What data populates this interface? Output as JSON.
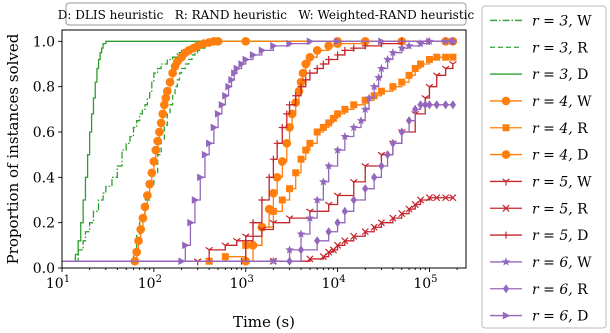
{
  "chart_data": {
    "type": "line",
    "title": "",
    "xlabel": "Time (s)",
    "ylabel": "Proportion of instances solved",
    "xscale": "log",
    "xlim": [
      10,
      250000
    ],
    "ylim": [
      0,
      1.05
    ],
    "x_ticks": [
      {
        "value": 10,
        "base": "10",
        "exp": "1"
      },
      {
        "value": 100,
        "base": "10",
        "exp": "2"
      },
      {
        "value": 1000,
        "base": "10",
        "exp": "3"
      },
      {
        "value": 10000,
        "base": "10",
        "exp": "4"
      },
      {
        "value": 100000,
        "base": "10",
        "exp": "5"
      }
    ],
    "y_ticks": [
      "0.0",
      "0.2",
      "0.4",
      "0.6",
      "0.8",
      "1.0"
    ],
    "note": "D: DLIS heuristic   R: RAND heuristic   W: Weighted-RAND heuristic",
    "legend_position": "right-outside",
    "series": [
      {
        "name": "r = 3, W",
        "color": "#2ca02c",
        "dash": "dashdot",
        "marker": "none",
        "x": [
          10,
          14,
          15,
          17,
          18,
          20,
          22,
          25,
          28,
          30,
          35,
          40,
          45,
          50,
          55,
          60,
          65,
          70,
          75,
          80,
          85,
          90,
          95,
          100,
          110,
          120,
          140,
          160,
          180,
          200,
          230,
          260,
          300,
          350,
          400,
          450,
          500,
          600,
          700,
          900,
          1200,
          2000,
          5000,
          20000,
          150000
        ],
        "y": [
          0.03,
          0.03,
          0.08,
          0.12,
          0.16,
          0.2,
          0.25,
          0.3,
          0.33,
          0.36,
          0.4,
          0.45,
          0.52,
          0.55,
          0.58,
          0.62,
          0.65,
          0.68,
          0.7,
          0.72,
          0.75,
          0.78,
          0.82,
          0.86,
          0.88,
          0.9,
          0.92,
          0.93,
          0.95,
          0.96,
          0.97,
          0.98,
          0.98,
          0.99,
          0.99,
          1.0,
          1.0,
          1.0,
          1.0,
          1.0,
          1.0,
          1.0,
          1.0,
          1.0,
          1.0
        ]
      },
      {
        "name": "r = 3, R",
        "color": "#2ca02c",
        "dash": "dashed",
        "marker": "none",
        "x": [
          10,
          58,
          60,
          65,
          70,
          80,
          90,
          100,
          110,
          120,
          130,
          140,
          150,
          160,
          170,
          180,
          190,
          200,
          220,
          240,
          260,
          280,
          300,
          330,
          360,
          400,
          450,
          500,
          700,
          1000,
          3000,
          20000,
          150000
        ],
        "y": [
          0.03,
          0.03,
          0.08,
          0.15,
          0.22,
          0.3,
          0.36,
          0.42,
          0.5,
          0.57,
          0.63,
          0.68,
          0.72,
          0.76,
          0.8,
          0.83,
          0.86,
          0.88,
          0.9,
          0.92,
          0.94,
          0.95,
          0.96,
          0.97,
          0.98,
          0.99,
          0.99,
          1.0,
          1.0,
          1.0,
          1.0,
          1.0,
          1.0
        ]
      },
      {
        "name": "r = 3, D",
        "color": "#2ca02c",
        "dash": "solid",
        "marker": "none",
        "x": [
          10,
          13,
          14,
          15,
          16,
          17,
          18,
          19,
          20,
          21,
          22,
          23,
          24,
          25,
          26,
          27,
          28,
          30,
          40,
          100,
          1000,
          150000
        ],
        "y": [
          0.03,
          0.03,
          0.06,
          0.12,
          0.2,
          0.3,
          0.4,
          0.5,
          0.6,
          0.68,
          0.75,
          0.82,
          0.88,
          0.92,
          0.95,
          0.97,
          0.99,
          1.0,
          1.0,
          1.0,
          1.0,
          1.0
        ]
      },
      {
        "name": "r = 4, W",
        "color": "#ff7f0e",
        "dash": "solid",
        "marker": "circle",
        "x": [
          10,
          62,
          65,
          68,
          72,
          76,
          80,
          85,
          90,
          95,
          100,
          105,
          110,
          115,
          120,
          125,
          130,
          135,
          140,
          150,
          160,
          170,
          180,
          200,
          220,
          240,
          270,
          300,
          350,
          400,
          450,
          500,
          1000,
          10000,
          150000
        ],
        "y": [
          0.03,
          0.03,
          0.07,
          0.12,
          0.17,
          0.22,
          0.27,
          0.32,
          0.37,
          0.42,
          0.47,
          0.52,
          0.56,
          0.6,
          0.64,
          0.68,
          0.72,
          0.75,
          0.78,
          0.82,
          0.86,
          0.89,
          0.91,
          0.93,
          0.95,
          0.96,
          0.97,
          0.98,
          0.99,
          0.995,
          1.0,
          1.0,
          1.0,
          1.0,
          1.0
        ]
      },
      {
        "name": "r = 4, R",
        "color": "#ff7f0e",
        "dash": "solid",
        "marker": "square",
        "x": [
          10,
          400,
          600,
          1000,
          1500,
          2000,
          2500,
          3000,
          3500,
          4000,
          4500,
          5000,
          6000,
          7000,
          8000,
          9000,
          10000,
          12000,
          15000,
          20000,
          25000,
          30000,
          40000,
          50000,
          60000,
          70000,
          80000,
          100000,
          120000,
          150000,
          180000
        ],
        "y": [
          0.03,
          0.03,
          0.05,
          0.1,
          0.18,
          0.25,
          0.3,
          0.35,
          0.42,
          0.48,
          0.52,
          0.55,
          0.6,
          0.62,
          0.64,
          0.66,
          0.68,
          0.7,
          0.72,
          0.74,
          0.76,
          0.78,
          0.8,
          0.82,
          0.85,
          0.88,
          0.9,
          0.92,
          0.93,
          0.93,
          0.93
        ]
      },
      {
        "name": "r = 4, D",
        "color": "#ff7f0e",
        "dash": "solid",
        "marker": "circle",
        "x": [
          10,
          1000,
          1200,
          1500,
          1800,
          2000,
          2200,
          2500,
          2800,
          3000,
          3200,
          3500,
          3800,
          4000,
          4200,
          4500,
          5000,
          6000,
          8000,
          10000,
          20000,
          50000,
          180000
        ],
        "y": [
          0.03,
          0.03,
          0.1,
          0.18,
          0.26,
          0.33,
          0.4,
          0.47,
          0.55,
          0.62,
          0.68,
          0.73,
          0.78,
          0.82,
          0.86,
          0.9,
          0.93,
          0.96,
          0.98,
          0.99,
          1.0,
          1.0,
          1.0
        ]
      },
      {
        "name": "r = 5, W",
        "color": "#c4262e",
        "dash": "solid",
        "marker": "tri_down",
        "x": [
          10,
          300,
          400,
          600,
          800,
          1000,
          1500,
          2000,
          3000,
          5000,
          8000,
          10000,
          15000,
          20000,
          30000,
          40000,
          50000,
          70000,
          90000,
          100000,
          120000,
          150000,
          180000
        ],
        "y": [
          0.03,
          0.03,
          0.08,
          0.1,
          0.12,
          0.14,
          0.17,
          0.2,
          0.22,
          0.25,
          0.28,
          0.32,
          0.38,
          0.45,
          0.5,
          0.55,
          0.6,
          0.68,
          0.75,
          0.8,
          0.85,
          0.88,
          0.9
        ]
      },
      {
        "name": "r = 5, R",
        "color": "#c4262e",
        "dash": "solid",
        "marker": "x",
        "x": [
          10,
          2000,
          5000,
          7000,
          8000,
          9000,
          10000,
          12000,
          15000,
          20000,
          25000,
          30000,
          40000,
          50000,
          60000,
          70000,
          80000,
          100000,
          120000,
          150000,
          180000
        ],
        "y": [
          0.03,
          0.03,
          0.04,
          0.05,
          0.07,
          0.08,
          0.1,
          0.12,
          0.14,
          0.16,
          0.18,
          0.2,
          0.22,
          0.24,
          0.26,
          0.28,
          0.3,
          0.31,
          0.31,
          0.31,
          0.31
        ]
      },
      {
        "name": "r = 5, D",
        "color": "#c4262e",
        "dash": "solid",
        "marker": "plus",
        "x": [
          10,
          900,
          1000,
          1200,
          1500,
          1800,
          2000,
          2200,
          2500,
          2800,
          3000,
          3500,
          4000,
          4500,
          5000,
          6000,
          7000,
          8000,
          10000,
          12000,
          15000,
          20000,
          30000,
          50000,
          100000,
          180000
        ],
        "y": [
          0.03,
          0.03,
          0.12,
          0.2,
          0.3,
          0.4,
          0.48,
          0.55,
          0.62,
          0.68,
          0.72,
          0.76,
          0.8,
          0.83,
          0.86,
          0.88,
          0.9,
          0.92,
          0.94,
          0.96,
          0.97,
          0.98,
          0.99,
          1.0,
          1.0,
          1.0
        ]
      },
      {
        "name": "r = 6, W",
        "color": "#9467bd",
        "dash": "solid",
        "marker": "star",
        "x": [
          10,
          2000,
          3000,
          4000,
          5000,
          6000,
          7000,
          8000,
          10000,
          12000,
          15000,
          18000,
          20000,
          22000,
          25000,
          28000,
          30000,
          35000,
          40000,
          50000,
          60000,
          80000,
          100000,
          150000,
          180000
        ],
        "y": [
          0.03,
          0.03,
          0.08,
          0.15,
          0.22,
          0.3,
          0.38,
          0.45,
          0.52,
          0.58,
          0.62,
          0.65,
          0.7,
          0.75,
          0.8,
          0.84,
          0.88,
          0.92,
          0.95,
          0.97,
          0.98,
          0.99,
          1.0,
          1.0,
          1.0
        ]
      },
      {
        "name": "r = 6, R",
        "color": "#9467bd",
        "dash": "solid",
        "marker": "diamond",
        "x": [
          10,
          3000,
          4000,
          6000,
          8000,
          10000,
          12000,
          15000,
          20000,
          25000,
          30000,
          35000,
          40000,
          50000,
          60000,
          70000,
          80000,
          90000,
          100000,
          120000,
          150000,
          180000
        ],
        "y": [
          0.03,
          0.03,
          0.08,
          0.12,
          0.16,
          0.2,
          0.25,
          0.3,
          0.35,
          0.4,
          0.45,
          0.5,
          0.55,
          0.6,
          0.65,
          0.7,
          0.72,
          0.72,
          0.72,
          0.72,
          0.72,
          0.72
        ]
      },
      {
        "name": "r = 6, D",
        "color": "#9467bd",
        "dash": "solid",
        "marker": "tri_right",
        "x": [
          10,
          200,
          220,
          250,
          280,
          320,
          360,
          400,
          450,
          500,
          550,
          600,
          650,
          700,
          750,
          800,
          900,
          1000,
          1200,
          1500,
          2000,
          3000,
          5000,
          10000,
          30000,
          100000,
          180000
        ],
        "y": [
          0.03,
          0.03,
          0.1,
          0.2,
          0.3,
          0.4,
          0.5,
          0.55,
          0.62,
          0.68,
          0.72,
          0.76,
          0.8,
          0.83,
          0.86,
          0.88,
          0.9,
          0.92,
          0.94,
          0.96,
          0.98,
          0.99,
          1.0,
          1.0,
          1.0,
          1.0,
          1.0
        ]
      }
    ]
  }
}
